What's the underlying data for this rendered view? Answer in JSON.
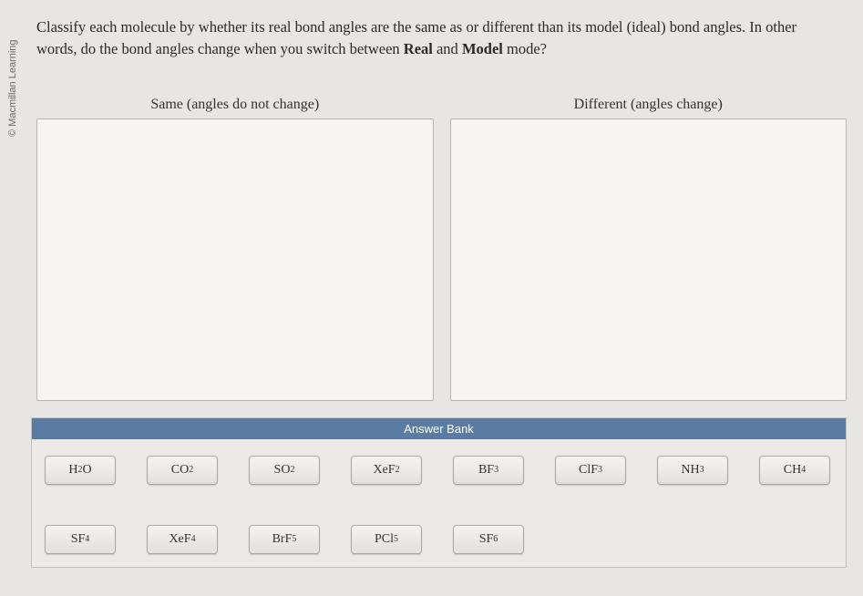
{
  "copyright": "© Macmillan Learning",
  "question": {
    "line1_a": "Classify each molecule by whether its real bond angles are the same as or different than its model (ideal) bond angles. In other",
    "line2_a": "words, do the bond angles change when you switch between ",
    "bold1": "Real",
    "mid": " and ",
    "bold2": "Model",
    "line2_b": " mode?"
  },
  "zones": {
    "same_label": "Same (angles do not change)",
    "diff_label": "Different (angles change)"
  },
  "bank": {
    "header": "Answer Bank",
    "items_row1": [
      {
        "base": "H",
        "sub": "2",
        "tail": "O"
      },
      {
        "base": "CO",
        "sub": "2",
        "tail": ""
      },
      {
        "base": "SO",
        "sub": "2",
        "tail": ""
      },
      {
        "base": "XeF",
        "sub": "2",
        "tail": ""
      },
      {
        "base": "BF",
        "sub": "3",
        "tail": ""
      },
      {
        "base": "ClF",
        "sub": "3",
        "tail": ""
      },
      {
        "base": "NH",
        "sub": "3",
        "tail": ""
      },
      {
        "base": "CH",
        "sub": "4",
        "tail": ""
      }
    ],
    "items_row2": [
      {
        "base": "SF",
        "sub": "4",
        "tail": ""
      },
      {
        "base": "XeF",
        "sub": "4",
        "tail": ""
      },
      {
        "base": "BrF",
        "sub": "5",
        "tail": ""
      },
      {
        "base": "PCl",
        "sub": "5",
        "tail": ""
      },
      {
        "base": "SF",
        "sub": "6",
        "tail": ""
      }
    ]
  },
  "colors": {
    "page_bg": "#e8e6e3",
    "dropzone_bg": "#f6f5f2",
    "dropzone_border": "#b8b6b2",
    "bank_header_bg": "#5a7ca3",
    "tile_border": "#a8a6a2"
  }
}
